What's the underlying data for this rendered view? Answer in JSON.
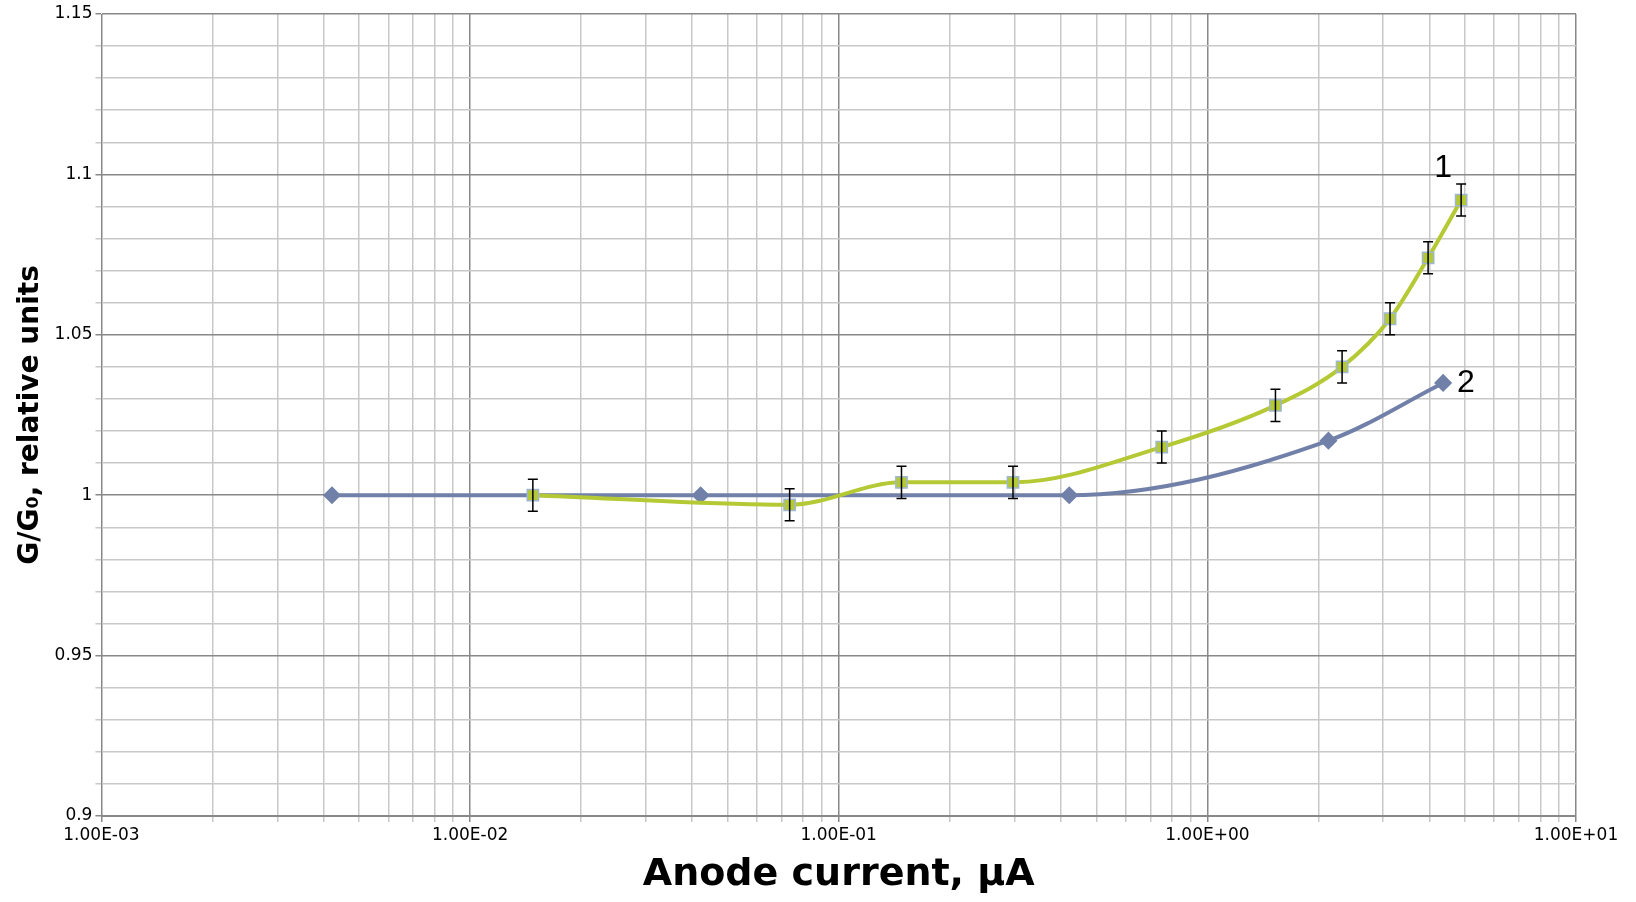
{
  "chart_data": {
    "type": "line",
    "xlabel": "Anode current, µA",
    "ylabel": "G/G₀, relative units",
    "log": "x",
    "xlim": [
      0.001,
      10
    ],
    "xticks": [
      {
        "value": 0.001,
        "label": "1.00E-03"
      },
      {
        "value": 0.002,
        "label": null
      },
      {
        "value": 0.003,
        "label": null
      },
      {
        "value": 0.004,
        "label": null
      },
      {
        "value": 0.005,
        "label": null
      },
      {
        "value": 0.006,
        "label": null
      },
      {
        "value": 0.007,
        "label": null
      },
      {
        "value": 0.008,
        "label": null
      },
      {
        "value": 0.009,
        "label": null
      },
      {
        "value": 0.01,
        "label": "1.00E-02"
      },
      {
        "value": 0.02,
        "label": null
      },
      {
        "value": 0.03,
        "label": null
      },
      {
        "value": 0.04,
        "label": null
      },
      {
        "value": 0.05,
        "label": null
      },
      {
        "value": 0.06,
        "label": null
      },
      {
        "value": 0.07,
        "label": null
      },
      {
        "value": 0.08,
        "label": null
      },
      {
        "value": 0.09,
        "label": null
      },
      {
        "value": 0.1,
        "label": "1.00E-01"
      },
      {
        "value": 0.2,
        "label": null
      },
      {
        "value": 0.3,
        "label": null
      },
      {
        "value": 0.4,
        "label": null
      },
      {
        "value": 0.5,
        "label": null
      },
      {
        "value": 0.6,
        "label": null
      },
      {
        "value": 0.7,
        "label": null
      },
      {
        "value": 0.8,
        "label": null
      },
      {
        "value": 0.9,
        "label": null
      },
      {
        "value": 1,
        "label": "1.00E+00"
      },
      {
        "value": 2,
        "label": null
      },
      {
        "value": 3,
        "label": null
      },
      {
        "value": 4,
        "label": null
      },
      {
        "value": 5,
        "label": null
      },
      {
        "value": 6,
        "label": null
      },
      {
        "value": 7,
        "label": null
      },
      {
        "value": 8,
        "label": null
      },
      {
        "value": 9,
        "label": null
      },
      {
        "value": 10,
        "label": "1.00E+01"
      }
    ],
    "ylim": [
      0.9,
      1.15
    ],
    "yticks": [
      0.9,
      {
        "value": 0.91,
        "label": null
      },
      {
        "value": 0.92,
        "label": null
      },
      {
        "value": 0.93,
        "label": null
      },
      {
        "value": 0.94,
        "label": null
      },
      0.95,
      {
        "value": 0.96,
        "label": null
      },
      {
        "value": 0.97,
        "label": null
      },
      {
        "value": 0.98,
        "label": null
      },
      {
        "value": 0.99,
        "label": null
      },
      1,
      {
        "value": 1.01,
        "label": null
      },
      {
        "value": 1.02,
        "label": null
      },
      {
        "value": 1.03,
        "label": null
      },
      {
        "value": 1.04,
        "label": null
      },
      1.05,
      {
        "value": 1.06,
        "label": null
      },
      {
        "value": 1.07,
        "label": null
      },
      {
        "value": 1.08,
        "label": null
      },
      {
        "value": 1.09,
        "label": null
      },
      1.1,
      {
        "value": 1.11,
        "label": null
      },
      {
        "value": 1.12,
        "label": null
      },
      {
        "value": 1.13,
        "label": null
      },
      {
        "value": 1.14,
        "label": null
      },
      1.15
    ],
    "grid": true,
    "legend": false,
    "series": [
      {
        "color": "#b5c934",
        "marker": "square",
        "x": [
          0.0148,
          0.0736,
          0.148,
          0.297,
          0.752,
          1.53,
          2.32,
          3.13,
          3.97,
          4.88
        ],
        "values": [
          1.0,
          0.997,
          1.004,
          1.004,
          1.015,
          1.028,
          1.04,
          1.055,
          1.074,
          1.092
        ],
        "errors": [
          0.005,
          0.005,
          0.005,
          0.005,
          0.005,
          0.005,
          0.005,
          0.005,
          0.005,
          0.005
        ]
      },
      {
        "color": "#7080a8",
        "marker": "diamond",
        "x": [
          0.00422,
          0.0422,
          0.422,
          2.13,
          4.36
        ],
        "values": [
          1.0,
          1.0,
          1.0,
          1.017,
          1.035
        ]
      }
    ],
    "annotations": [
      {
        "text": "1",
        "x": 4.88,
        "y": 1.092
      },
      {
        "text": "2",
        "x": 4.36,
        "y": 1.035
      }
    ]
  }
}
